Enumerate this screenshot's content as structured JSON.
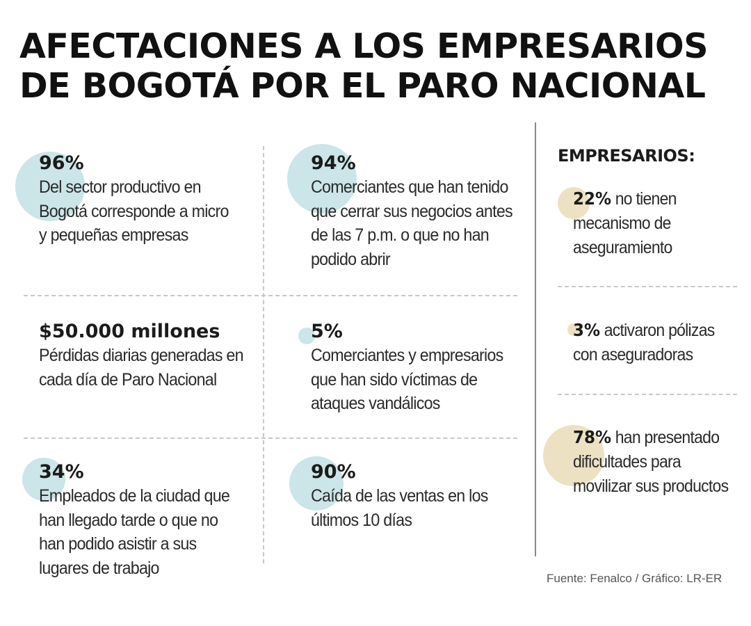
{
  "title": {
    "line1": "AFECTACIONES A LOS EMPRESARIOS",
    "line2": "DE BOGOTÁ POR EL PARO NACIONAL"
  },
  "colors": {
    "teal_circle": "#cbe5e8",
    "sand_circle": "#ede1c4"
  },
  "stats": [
    {
      "value": "96%",
      "desc": [
        "Del sector productivo en",
        "Bogotá corresponde a micro",
        "y pequeñas empresas"
      ]
    },
    {
      "value": "94%",
      "desc": [
        "Comerciantes que han tenido",
        "que cerrar sus negocios antes",
        "de las 7 p.m. o que no han",
        "podido abrir"
      ]
    },
    {
      "value": "$50.000 millones",
      "desc": [
        "Pérdidas diarias generadas en",
        "cada día de Paro Nacional"
      ]
    },
    {
      "value": "5%",
      "desc": [
        "Comerciantes y empresarios",
        "que han sido víctimas de",
        "ataques vandálicos"
      ]
    },
    {
      "value": "34%",
      "desc": [
        "Empleados de la ciudad que",
        "han llegado tarde o que no",
        "han podido asistir a sus",
        "lugares de trabajo"
      ]
    },
    {
      "value": "90%",
      "desc": [
        "Caída de las ventas en los",
        "últimos 10 días"
      ]
    }
  ],
  "sidebar": {
    "heading": "EMPRESARIOS:",
    "items": [
      {
        "value": "22%",
        "lines": [
          " no tienen",
          "mecanismo de",
          "aseguramiento"
        ]
      },
      {
        "value": "3%",
        "lines": [
          " activaron pólizas",
          "con aseguradoras"
        ]
      },
      {
        "value": "78%",
        "lines": [
          " han presentado",
          "dificultades para",
          "movilizar sus productos"
        ]
      }
    ]
  },
  "source": "Fuente: Fenalco / Gráfico: LR-ER"
}
